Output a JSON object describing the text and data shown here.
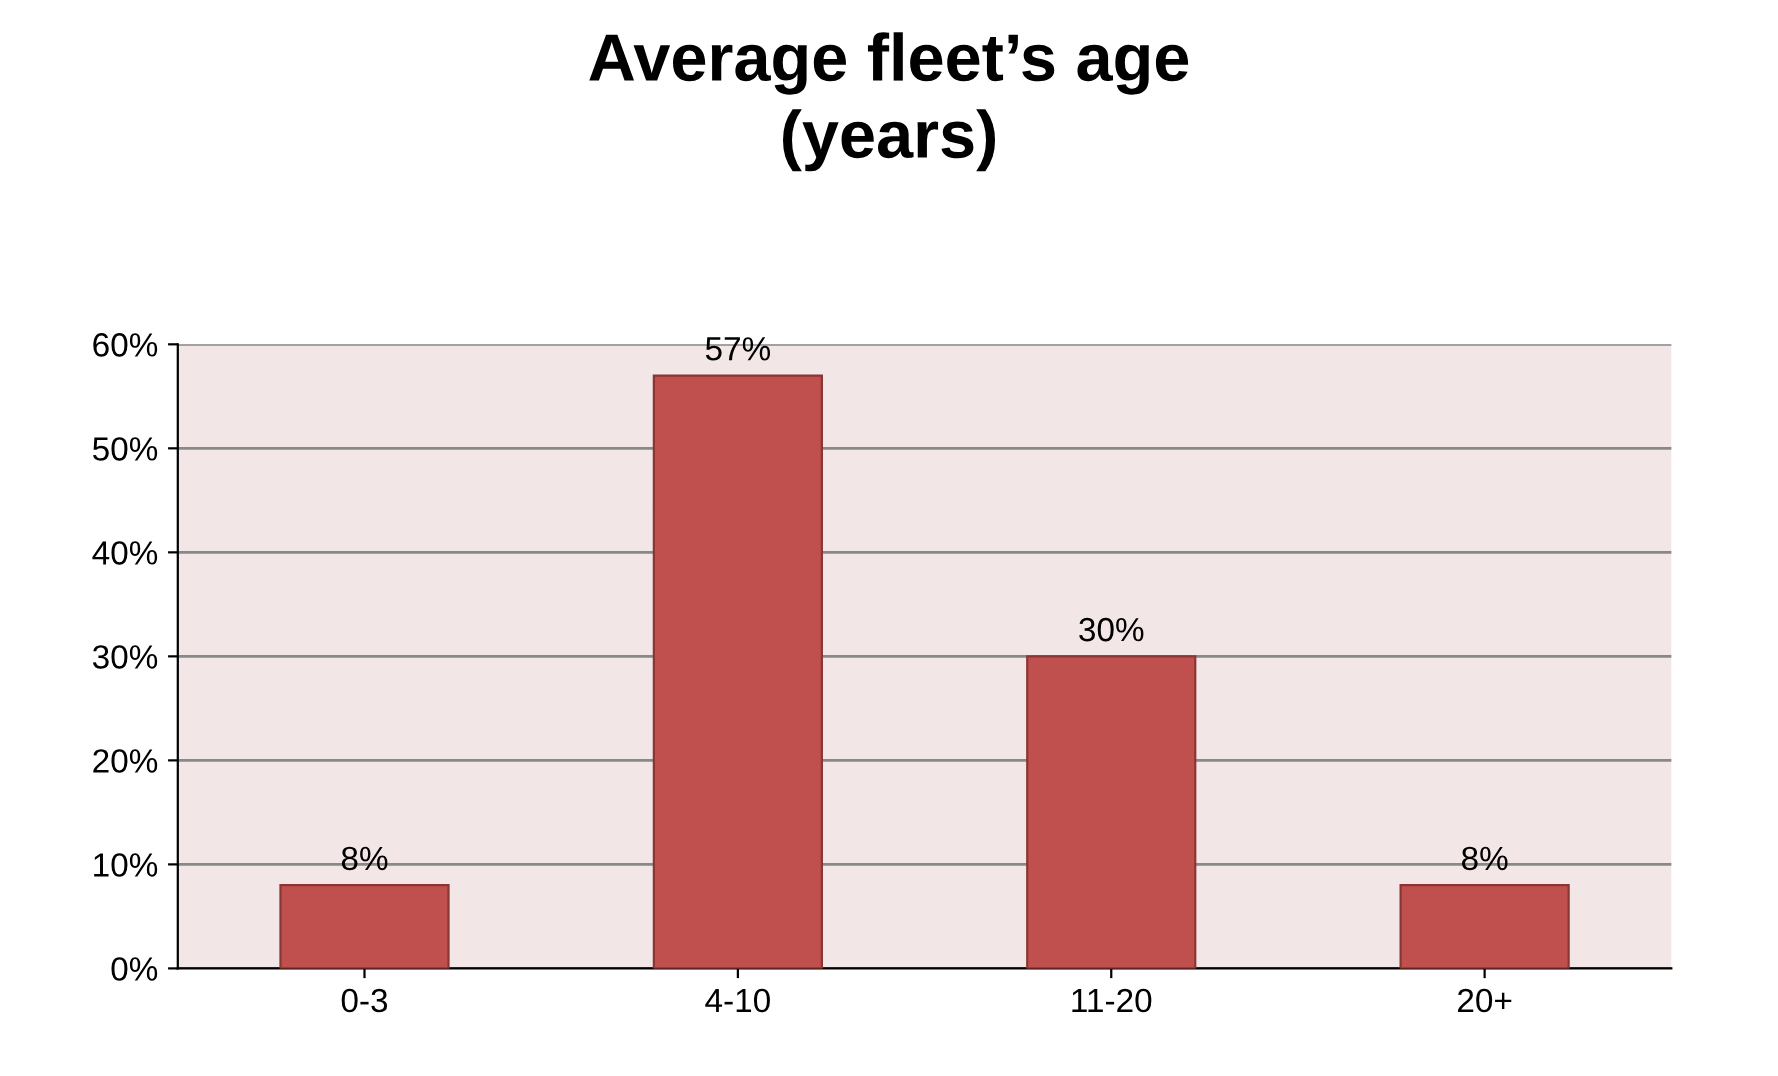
{
  "chart_data": {
    "type": "bar",
    "title": "Average fleet’s age\n(years)",
    "categories": [
      "0-3",
      "4-10",
      "11-20",
      "20+"
    ],
    "values": [
      8,
      57,
      30,
      8
    ],
    "value_labels": [
      "8%",
      "57%",
      "30%",
      "8%"
    ],
    "color": "#c0504d",
    "ylim": [
      0,
      60
    ],
    "yticks": [
      {
        "value": 0,
        "label": "0%"
      },
      {
        "value": 10,
        "label": "10%"
      },
      {
        "value": 20,
        "label": "20%"
      },
      {
        "value": 30,
        "label": "30%"
      },
      {
        "value": 40,
        "label": "40%"
      },
      {
        "value": 50,
        "label": "50%"
      },
      {
        "value": 60,
        "label": "60%"
      }
    ],
    "grid": "y",
    "legend": false
  }
}
